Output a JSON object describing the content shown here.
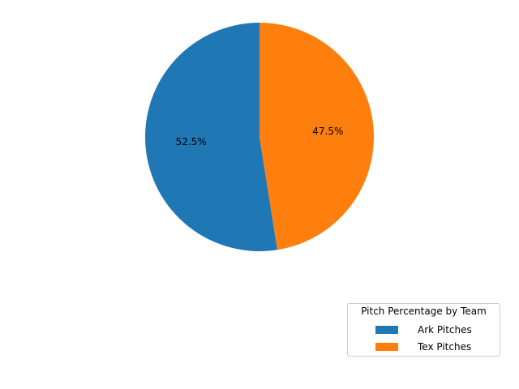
{
  "chart_data": {
    "type": "pie",
    "categories": [
      "Ark Pitches",
      "Tex Pitches"
    ],
    "values": [
      52.5,
      47.5
    ],
    "labels": [
      "52.5%",
      "47.5%"
    ],
    "colors": [
      "#1f77b4",
      "#ff7f0e"
    ],
    "start_angle_deg": 90,
    "direction": "counterclockwise",
    "legend": {
      "title": "Pitch Percentage by Team",
      "placement": "lower-right",
      "entries": [
        "Ark Pitches",
        "Tex Pitches"
      ]
    }
  }
}
